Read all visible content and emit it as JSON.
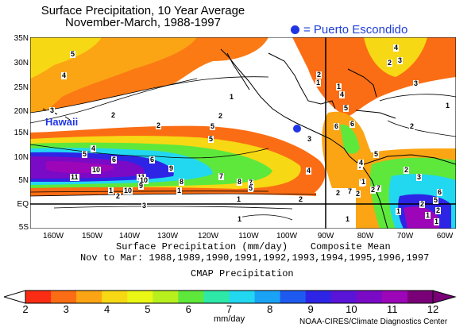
{
  "title": {
    "line1": "Surface Precipitation, 10 Year Average",
    "line2": "November-March, 1988-1997"
  },
  "marker": {
    "legend_text": "= Puerto Escondido",
    "color": "#1f35e6",
    "region_label": "Hawaii"
  },
  "axes": {
    "lat_labels": [
      "35N",
      "30N",
      "25N",
      "20N",
      "15N",
      "10N",
      "5N",
      "EQ",
      "5S"
    ],
    "lon_labels": [
      "160W",
      "150W",
      "140W",
      "130W",
      "120W",
      "110W",
      "100W",
      "90W",
      "80W",
      "70W",
      "60W"
    ]
  },
  "caption": {
    "line1": "Surface Precipitation (mm/day)    Composite Mean",
    "line2": "Nov to Mar: 1988,1989,1990,1991,1992,1993,1994,1995,1996,1997",
    "line3": "CMAP Precipitation"
  },
  "colorbar": {
    "labels": [
      "2",
      "3",
      "4",
      "5",
      "6",
      "7",
      "8",
      "9",
      "10",
      "11",
      "12"
    ],
    "units": "mm/day",
    "colors": [
      "#fb2c14",
      "#fb6d14",
      "#fba514",
      "#f6d814",
      "#eaf614",
      "#b8f01e",
      "#5ee83c",
      "#2ee8a8",
      "#22d8f0",
      "#1aa2f6",
      "#1e5af0",
      "#2e24e6",
      "#5a14d8",
      "#7a0ac6",
      "#9c06b8",
      "#7a0078"
    ]
  },
  "map_labels": {
    "contours": [
      "5",
      "4",
      "3",
      "2",
      "2",
      "1",
      "1",
      "2",
      "3",
      "5",
      "5",
      "2",
      "1",
      "1",
      "4",
      "5",
      "6",
      "6",
      "7",
      "8",
      "9",
      "10",
      "11",
      "10",
      "11",
      "10",
      "9",
      "8",
      "2",
      "4",
      "7",
      "6",
      "5",
      "7",
      "5",
      "3",
      "2",
      "1",
      "1",
      "1",
      "2",
      "2",
      "1",
      "6",
      "7",
      "4",
      "3",
      "2",
      "1",
      "2",
      "1",
      "4",
      "5",
      "6",
      "7",
      "3",
      "2",
      "1",
      "2",
      "4",
      "5",
      "6",
      "7",
      "1",
      "2",
      "3",
      "2",
      "1"
    ]
  },
  "credit": "NOAA-CIRES/Climate Diagnostics Center"
}
